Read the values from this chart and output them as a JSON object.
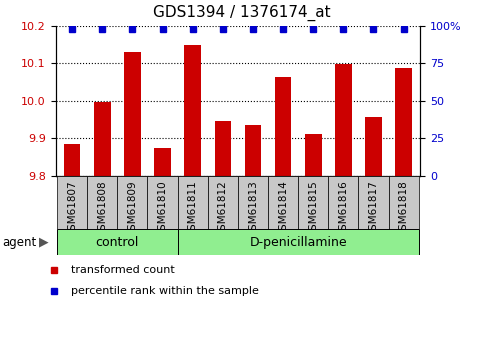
{
  "title": "GDS1394 / 1376174_at",
  "samples": [
    "GSM61807",
    "GSM61808",
    "GSM61809",
    "GSM61810",
    "GSM61811",
    "GSM61812",
    "GSM61813",
    "GSM61814",
    "GSM61815",
    "GSM61816",
    "GSM61817",
    "GSM61818"
  ],
  "bar_values": [
    9.885,
    9.997,
    10.13,
    9.875,
    10.148,
    9.947,
    9.937,
    10.065,
    9.913,
    10.099,
    9.957,
    10.087
  ],
  "percentile_values": [
    98,
    98,
    98,
    98,
    98,
    98,
    98,
    98,
    98,
    98,
    98,
    98
  ],
  "bar_color": "#cc0000",
  "percentile_color": "#0000cc",
  "ylim_left": [
    9.8,
    10.2
  ],
  "ylim_right": [
    0,
    100
  ],
  "yticks_left": [
    9.8,
    9.9,
    10.0,
    10.1,
    10.2
  ],
  "yticks_right": [
    0,
    25,
    50,
    75,
    100
  ],
  "group_ctrl_n": 4,
  "group_dpen_n": 8,
  "group_labels": [
    "control",
    "D-penicillamine"
  ],
  "group_color": "#90ee90",
  "sample_box_color": "#c8c8c8",
  "agent_label": "agent",
  "legend_bar_label": "transformed count",
  "legend_dot_label": "percentile rank within the sample",
  "bar_width": 0.55,
  "title_fontsize": 11,
  "tick_fontsize": 8,
  "label_fontsize": 8.5,
  "group_fontsize": 9
}
